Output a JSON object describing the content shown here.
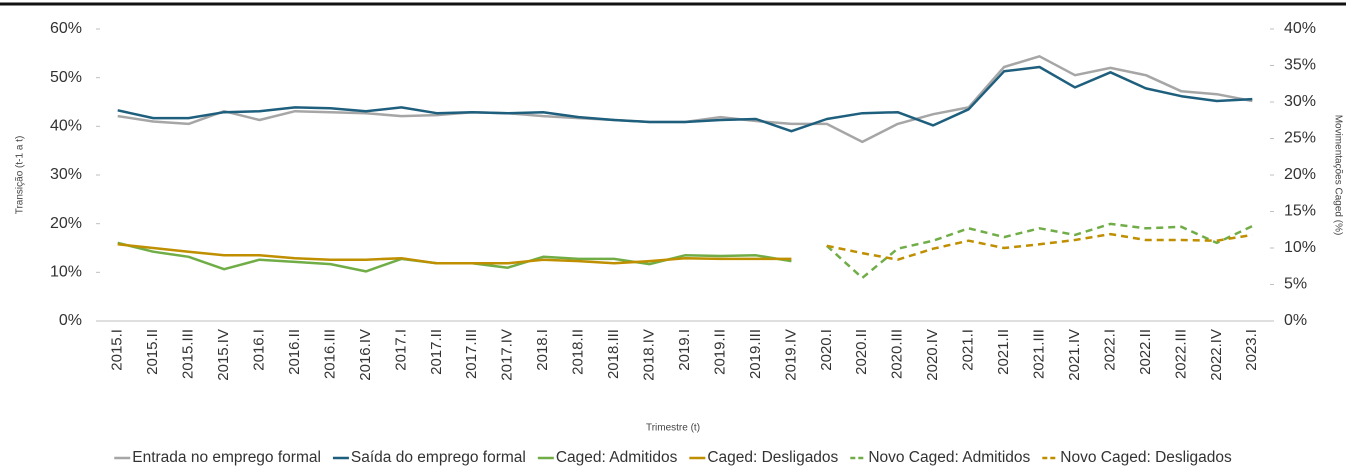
{
  "chart_data": {
    "type": "line",
    "x_label": "Trimestre (t)",
    "y_label": "Transição (t-1 a t)",
    "y2_label": "Movimentações Caged (%)",
    "categories": [
      "2015.I",
      "2015.II",
      "2015.III",
      "2015.IV",
      "2016.I",
      "2016.II",
      "2016.III",
      "2016.IV",
      "2017.I",
      "2017.II",
      "2017.III",
      "2017.IV",
      "2018.I",
      "2018.II",
      "2018.III",
      "2018.IV",
      "2019.I",
      "2019.II",
      "2019.III",
      "2019.IV",
      "2020.I",
      "2020.II",
      "2020.III",
      "2020.IV",
      "2021.I",
      "2021.II",
      "2021.III",
      "2021.IV",
      "2022.I",
      "2022.II",
      "2022.III",
      "2022.IV",
      "2023.I"
    ],
    "ylim": [
      0,
      60
    ],
    "yticks": [
      {
        "value": 0,
        "label": "0%"
      },
      {
        "value": 10,
        "label": "10%"
      },
      {
        "value": 20,
        "label": "20%"
      },
      {
        "value": 30,
        "label": "30%"
      },
      {
        "value": 40,
        "label": "40%"
      },
      {
        "value": 50,
        "label": "50%"
      },
      {
        "value": 60,
        "label": "60%"
      }
    ],
    "y2lim": [
      0,
      40
    ],
    "y2ticks": [
      {
        "value": 0,
        "label": "0%"
      },
      {
        "value": 5,
        "label": "5%"
      },
      {
        "value": 10,
        "label": "10%"
      },
      {
        "value": 15,
        "label": "15%"
      },
      {
        "value": 20,
        "label": "20%"
      },
      {
        "value": 25,
        "label": "25%"
      },
      {
        "value": 30,
        "label": "30%"
      },
      {
        "value": 35,
        "label": "35%"
      },
      {
        "value": 40,
        "label": "40%"
      }
    ],
    "grid": false,
    "legend": "bottom",
    "series": [
      {
        "name": "Entrada no emprego formal",
        "color": "#a6a6a6",
        "style": "solid",
        "values": [
          42.1,
          41,
          40.5,
          43.1,
          41.3,
          43.1,
          42.9,
          42.7,
          42.1,
          42.3,
          42.9,
          42.7,
          42.1,
          41.7,
          41.3,
          40.9,
          40.9,
          41.9,
          41.1,
          40.5,
          40.5,
          36.8,
          40.5,
          42.5,
          43.9,
          52.2,
          54.4,
          50.5,
          52,
          50.5,
          47.2,
          46.6,
          45.2
        ]
      },
      {
        "name": "Saída do emprego formal",
        "color": "#1f5f7e",
        "style": "solid",
        "values": [
          43.3,
          41.7,
          41.7,
          42.9,
          43.1,
          43.9,
          43.7,
          43.1,
          43.9,
          42.7,
          42.9,
          42.7,
          42.9,
          41.9,
          41.3,
          40.9,
          40.9,
          41.3,
          41.5,
          39,
          41.5,
          42.7,
          42.9,
          40.2,
          43.5,
          51.3,
          52.2,
          48,
          51.1,
          47.8,
          46.2,
          45.2,
          45.6
        ]
      },
      {
        "name": "Caged: Admitidos",
        "color": "#70ad47",
        "style": "solid",
        "axis": "y2",
        "values": [
          10.7,
          9.5,
          8.8,
          7.1,
          8.4,
          8.1,
          7.8,
          6.8,
          8.5,
          7.9,
          7.9,
          7.3,
          8.8,
          8.5,
          8.5,
          7.8,
          9,
          8.9,
          9,
          8.2,
          null,
          null,
          null,
          null,
          null,
          null,
          null,
          null,
          null,
          null,
          null,
          null,
          null
        ]
      },
      {
        "name": "Caged: Desligados",
        "color": "#bf8f00",
        "style": "solid",
        "axis": "y2",
        "values": [
          10.5,
          10,
          9.5,
          9,
          9,
          8.6,
          8.4,
          8.4,
          8.6,
          7.9,
          7.9,
          7.9,
          8.4,
          8.2,
          7.9,
          8.2,
          8.6,
          8.5,
          8.5,
          8.5,
          null,
          null,
          null,
          null,
          null,
          null,
          null,
          null,
          null,
          null,
          null,
          null,
          null
        ]
      },
      {
        "name": "Novo Caged: Admitidos",
        "color": "#70ad47",
        "style": "dashed",
        "axis": "y2",
        "values": [
          null,
          null,
          null,
          null,
          null,
          null,
          null,
          null,
          null,
          null,
          null,
          null,
          null,
          null,
          null,
          null,
          null,
          null,
          null,
          null,
          10.3,
          5.9,
          9.9,
          11,
          12.7,
          11.5,
          12.7,
          11.8,
          13.3,
          12.7,
          12.9,
          10.7,
          13
        ]
      },
      {
        "name": "Novo Caged: Desligados",
        "color": "#bf8f00",
        "style": "dashed",
        "axis": "y2",
        "values": [
          null,
          null,
          null,
          null,
          null,
          null,
          null,
          null,
          null,
          null,
          null,
          null,
          null,
          null,
          null,
          null,
          null,
          null,
          null,
          null,
          10.3,
          9.3,
          8.4,
          9.9,
          11,
          10,
          10.5,
          11.1,
          11.9,
          11.1,
          11.1,
          11,
          11.8
        ]
      }
    ]
  }
}
